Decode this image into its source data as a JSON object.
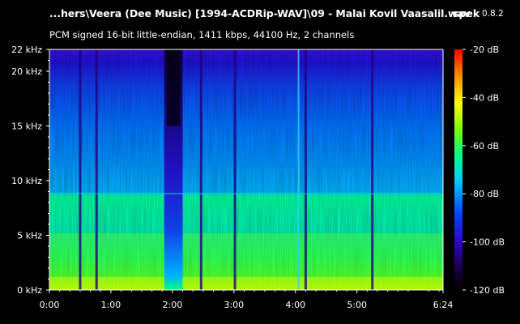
{
  "header": {
    "file_title": "...hers\\Veera (Dee Music) [1994-ACDRip-WAV]\\09 - Malai Kovil Vaasalil.wav",
    "app_name": "spek",
    "app_version": "0.8.2",
    "stream_info": "PCM signed 16-bit little-endian, 1411 kbps, 44100 Hz, 2 channels"
  },
  "chart_data": {
    "type": "heatmap",
    "x": {
      "unit": "time",
      "min_seconds": 0,
      "max_seconds": 384,
      "ticks": [
        {
          "value": 0,
          "label": "0:00"
        },
        {
          "value": 60,
          "label": "1:00"
        },
        {
          "value": 120,
          "label": "2:00"
        },
        {
          "value": 180,
          "label": "3:00"
        },
        {
          "value": 240,
          "label": "4:00"
        },
        {
          "value": 300,
          "label": "5:00"
        },
        {
          "value": 384,
          "label": "6:24"
        }
      ]
    },
    "y": {
      "unit": "kHz",
      "min": 0,
      "max": 22,
      "ticks": [
        {
          "value": 0,
          "label": "0 kHz"
        },
        {
          "value": 5,
          "label": "5 kHz"
        },
        {
          "value": 10,
          "label": "10 kHz"
        },
        {
          "value": 15,
          "label": "15 kHz"
        },
        {
          "value": 20,
          "label": "20 kHz"
        },
        {
          "value": 22,
          "label": "22 kHz"
        }
      ]
    },
    "color_scale": {
      "unit": "dB",
      "min": -120,
      "max": -20,
      "ticks": [
        {
          "value": -20,
          "label": "-20 dB"
        },
        {
          "value": -40,
          "label": "-40 dB"
        },
        {
          "value": -60,
          "label": "-60 dB"
        },
        {
          "value": -80,
          "label": "-80 dB"
        },
        {
          "value": -100,
          "label": "-100 dB"
        },
        {
          "value": -120,
          "label": "-120 dB"
        }
      ],
      "colors": [
        "#000000",
        "#12003a",
        "#3a00d8",
        "#0050ff",
        "#00c8ff",
        "#00ff90",
        "#90ff00",
        "#ffff00",
        "#ff9000",
        "#ff0000"
      ]
    },
    "features": {
      "quiet_gap_seconds": [
        112,
        130
      ],
      "spike_times_seconds": [
        30,
        46,
        148,
        181,
        250,
        315
      ],
      "tone_line_seconds": 243,
      "lowpass_shelf_khz": 8.8,
      "dense_band_khz": 5.2
    }
  }
}
